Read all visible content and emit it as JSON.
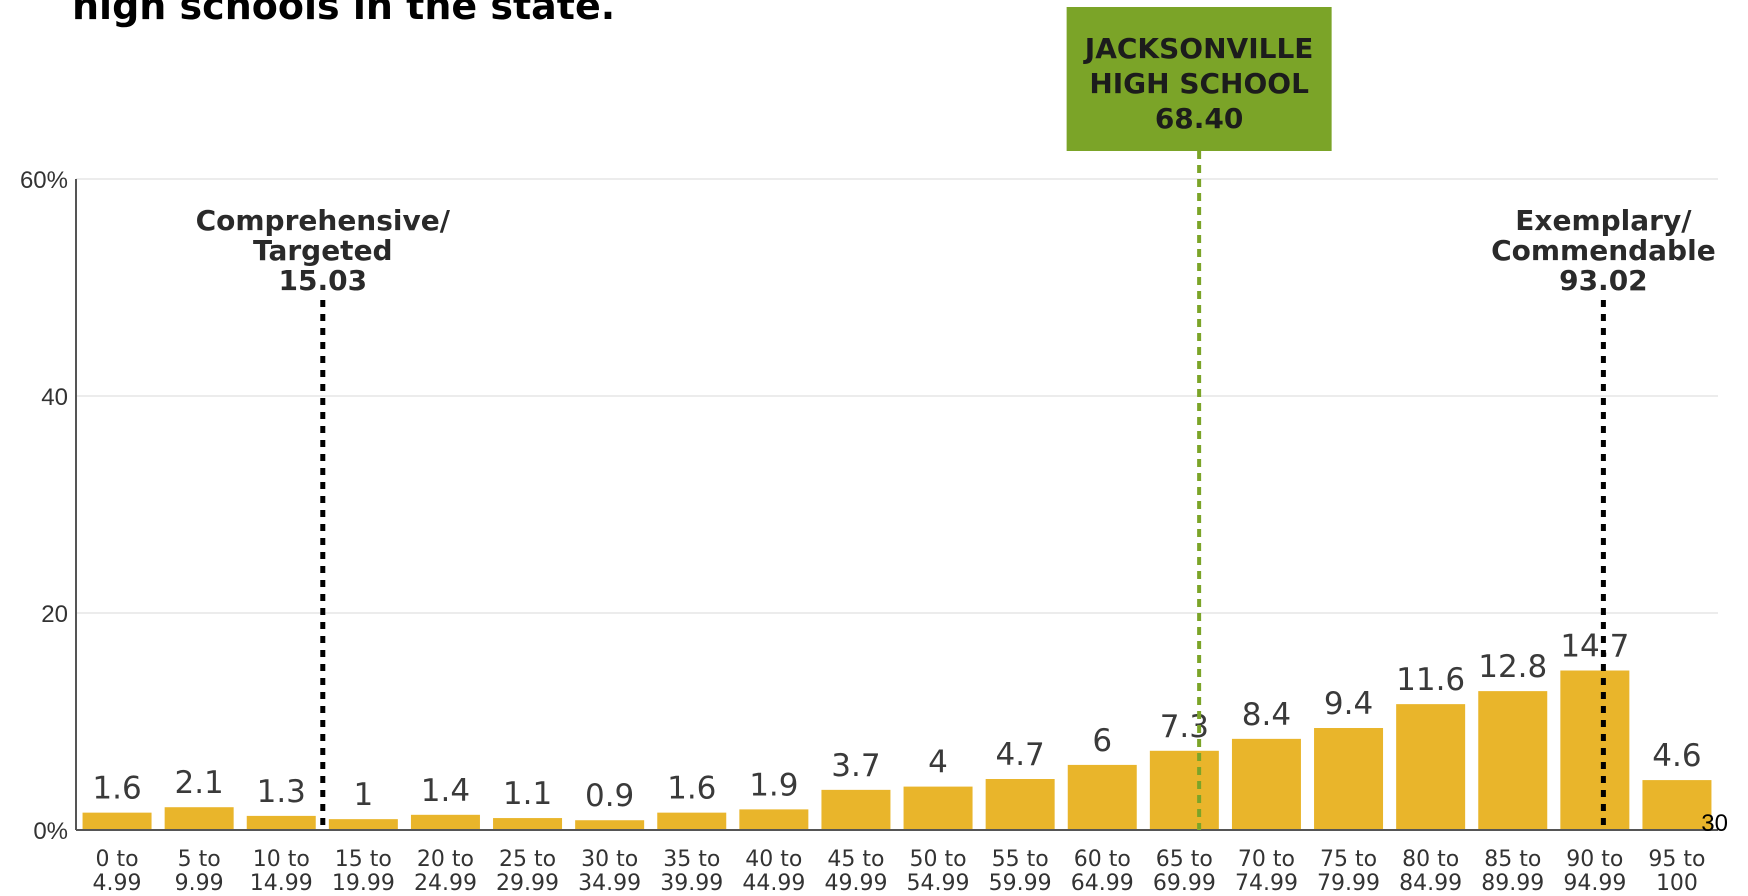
{
  "heading": "high schools in the state.",
  "page_number": "30",
  "colors": {
    "bar": "#e9b52b",
    "highlight": "#7ba428",
    "axis": "#555555",
    "grid": "#e6e6e6",
    "marker": "#000000"
  },
  "chart_data": {
    "type": "bar",
    "categories": [
      [
        "0 to",
        "4.99"
      ],
      [
        "5 to",
        "9.99"
      ],
      [
        "10 to",
        "14.99"
      ],
      [
        "15 to",
        "19.99"
      ],
      [
        "20 to",
        "24.99"
      ],
      [
        "25 to",
        "29.99"
      ],
      [
        "30 to",
        "34.99"
      ],
      [
        "35 to",
        "39.99"
      ],
      [
        "40 to",
        "44.99"
      ],
      [
        "45 to",
        "49.99"
      ],
      [
        "50 to",
        "54.99"
      ],
      [
        "55 to",
        "59.99"
      ],
      [
        "60 to",
        "64.99"
      ],
      [
        "65 to",
        "69.99"
      ],
      [
        "70 to",
        "74.99"
      ],
      [
        "75 to",
        "79.99"
      ],
      [
        "80 to",
        "84.99"
      ],
      [
        "85 to",
        "89.99"
      ],
      [
        "90 to",
        "94.99"
      ],
      [
        "95 to",
        "100"
      ]
    ],
    "values": [
      1.6,
      2.1,
      1.3,
      1,
      1.4,
      1.1,
      0.9,
      1.6,
      1.9,
      3.7,
      4,
      4.7,
      6,
      7.3,
      8.4,
      9.4,
      11.6,
      12.8,
      14.7,
      4.6
    ],
    "value_labels": [
      "1.6",
      "2.1",
      "1.3",
      "1",
      "1.4",
      "1.1",
      "0.9",
      "1.6",
      "1.9",
      "3.7",
      "4",
      "4.7",
      "6",
      "7.3",
      "8.4",
      "9.4",
      "11.6",
      "12.8",
      "14.7",
      "4.6"
    ],
    "ylim": [
      0,
      60
    ],
    "yticks": [
      0,
      20,
      40,
      60
    ],
    "ytick_labels": [
      "0%",
      "20",
      "40",
      "60%"
    ],
    "xlim": [
      0,
      100
    ],
    "grid": true,
    "markers": [
      {
        "x": 15.03,
        "lines": [
          "Comprehensive/",
          "Targeted",
          "15.03"
        ],
        "style": "black-dotted",
        "label_x": 15.03
      },
      {
        "x": 68.4,
        "lines": [
          "JACKSONVILLE",
          "HIGH SCHOOL",
          "68.40"
        ],
        "style": "green-box",
        "label_x": 68.4
      },
      {
        "x": 93.02,
        "lines": [
          "Exemplary/",
          "Commendable",
          "93.02"
        ],
        "style": "black-dotted",
        "label_x": 93.02
      }
    ]
  }
}
